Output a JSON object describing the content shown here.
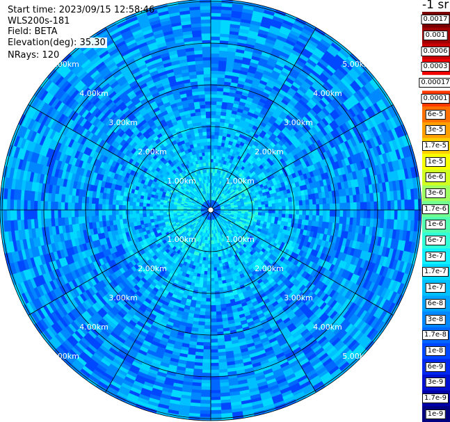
{
  "info": {
    "start_time": "Start time: 2023/09/15 12:58:46",
    "instrument": "WLS200s-181",
    "field": "Field: BETA",
    "elevation": "Elevation(deg): 35.30",
    "nrays": "NRays: 120"
  },
  "chart_data": {
    "type": "heatmap",
    "projection": "polar-ppi",
    "range_km": [
      0,
      5.0
    ],
    "range_rings_km": [
      1,
      2,
      3,
      4,
      5
    ],
    "ring_labels": [
      "1.00km",
      "2.00km",
      "3.00km",
      "4.00km",
      "5.00km"
    ],
    "azimuth_spokes_deg": [
      0,
      30,
      60,
      90,
      120,
      150,
      180,
      210,
      240,
      270,
      300,
      330
    ],
    "nrays": 120,
    "colorbar": {
      "unit": "-1 sr",
      "labels": [
        "0.0017",
        "0.001",
        "0.0006",
        "0.0003",
        "0.00017",
        "0.0001",
        "6e-5",
        "3e-5",
        "1.7e-5",
        "1e-5",
        "6e-6",
        "3e-6",
        "1.7e-6",
        "1e-6",
        "6e-7",
        "3e-7",
        "1.7e-7",
        "1e-7",
        "6e-8",
        "3e-8",
        "1.7e-8",
        "1e-8",
        "6e-9",
        "3e-9",
        "1.7e-9",
        "1e-9"
      ],
      "colors": [
        "#7a0000",
        "#a00000",
        "#c80000",
        "#f00000",
        "#ffffff",
        "#ff3a00",
        "#ff7000",
        "#ffa000",
        "#ffd000",
        "#f8ff00",
        "#d0ff20",
        "#a0ff60",
        "#70ff90",
        "#50ffb0",
        "#30ffd8",
        "#10f0ff",
        "#00d8ff",
        "#00c0ff",
        "#00a4ff",
        "#0088ff",
        "#0068ff",
        "#0048ff",
        "#0028f0",
        "#0010d0",
        "#0000a8",
        "#000080"
      ]
    },
    "field_palette": [
      "#00a4ff",
      "#0088ff",
      "#0068ff",
      "#00c0ff",
      "#0048ff",
      "#00d8ff"
    ],
    "near_palette": [
      "#00c0ff",
      "#00d8ff",
      "#10f0ff",
      "#00a4ff",
      "#30ffd8"
    ]
  }
}
